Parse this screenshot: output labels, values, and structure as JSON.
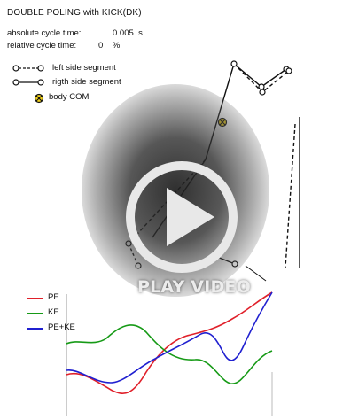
{
  "title": "DOUBLE POLING with KICK(DK)",
  "absolute_cycle_time": {
    "label": "absolute cycle time:",
    "value": "0.005",
    "unit": "s"
  },
  "relative_cycle_time": {
    "label": "relative cycle time:",
    "value": "0",
    "unit": "%"
  },
  "legend": {
    "left_side": "left side segment",
    "right_side": "rigth side segment",
    "body_com": "body COM"
  },
  "play": {
    "label": "PLAY VIDEO",
    "icon": "play-icon"
  },
  "energy_chart": {
    "type": "line",
    "series": [
      {
        "name": "PE",
        "color": "#e0202a"
      },
      {
        "name": "KE",
        "color": "#169a16"
      },
      {
        "name": "PE+KE",
        "color": "#2020d0"
      }
    ]
  },
  "colors": {
    "background": "#ffffff",
    "text": "#111111",
    "skeleton": "#111111",
    "overlay": "#2a2a2a",
    "play_text": "#ececec"
  }
}
